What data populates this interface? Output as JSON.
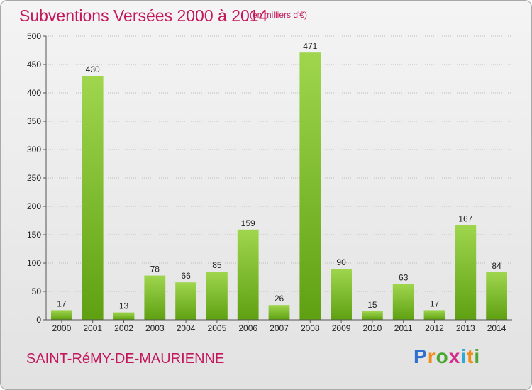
{
  "header": {
    "title": "Subventions Versées 2000 à 2014",
    "subtitle": "(en milliers d'€)"
  },
  "footer": {
    "commune": "SAINT-RéMY-DE-MAURIENNE",
    "logo_letters": [
      "P",
      "r",
      "o",
      "x",
      "i",
      "t",
      "i"
    ],
    "logo_colors": [
      "#2f6fd0",
      "#f08c1a",
      "#4aa832",
      "#d62f8b",
      "#2fa9d8",
      "#f08c1a",
      "#4aa832"
    ]
  },
  "colors": {
    "bar_light": "#9fd64e",
    "bar_dark": "#5fa012",
    "grid": "#bcbcbc",
    "axis": "#555555",
    "accent": "#c4185c"
  },
  "chart_data": {
    "type": "bar",
    "title": "Subventions Versées 2000 à 2014",
    "subtitle": "(en milliers d'€)",
    "xlabel": "",
    "ylabel": "",
    "categories": [
      "2000",
      "2001",
      "2002",
      "2003",
      "2004",
      "2005",
      "2006",
      "2007",
      "2008",
      "2009",
      "2010",
      "2011",
      "2012",
      "2013",
      "2014"
    ],
    "values": [
      17,
      430,
      13,
      78,
      66,
      85,
      159,
      26,
      471,
      90,
      15,
      63,
      17,
      167,
      84
    ],
    "ylim": [
      0,
      500
    ],
    "yticks": [
      0,
      50,
      100,
      150,
      200,
      250,
      300,
      350,
      400,
      450,
      500
    ],
    "grid": true,
    "legend": "none"
  }
}
